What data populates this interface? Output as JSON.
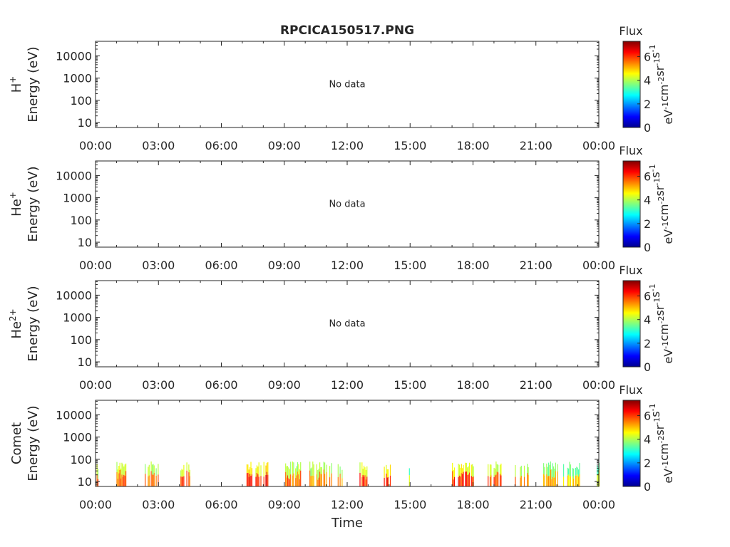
{
  "title": "RPCICA150517.PNG",
  "colorbar_range": [
    0,
    7.3
  ],
  "chart_data": [
    {
      "type": "heatmap",
      "species": "H",
      "species_sup": "+",
      "ylabel": "Energy (eV)",
      "ylim": [
        6,
        45000
      ],
      "yscale": "log",
      "yticks": [
        "10",
        "100",
        "1000",
        "10000"
      ],
      "xticks": [
        "00:00",
        "03:00",
        "06:00",
        "09:00",
        "12:00",
        "15:00",
        "18:00",
        "21:00",
        "00:00"
      ],
      "xlim_hours": [
        0,
        24
      ],
      "annotation": "No data",
      "bursts": [],
      "colorbar": {
        "title": "Flux",
        "ticks": [
          "0",
          "2",
          "4",
          "6"
        ],
        "unit": "eV-1cm-2sr-1s-1"
      }
    },
    {
      "type": "heatmap",
      "species": "He",
      "species_sup": "+",
      "ylabel": "Energy (eV)",
      "ylim": [
        6,
        45000
      ],
      "yscale": "log",
      "yticks": [
        "10",
        "100",
        "1000",
        "10000"
      ],
      "xticks": [
        "00:00",
        "03:00",
        "06:00",
        "09:00",
        "12:00",
        "15:00",
        "18:00",
        "21:00",
        "00:00"
      ],
      "xlim_hours": [
        0,
        24
      ],
      "annotation": "No data",
      "bursts": [],
      "colorbar": {
        "title": "Flux",
        "ticks": [
          "0",
          "2",
          "4",
          "6"
        ],
        "unit": "eV-1cm-2sr-1s-1"
      }
    },
    {
      "type": "heatmap",
      "species": "He",
      "species_sup": "2+",
      "ylabel": "Energy (eV)",
      "ylim": [
        6,
        45000
      ],
      "yscale": "log",
      "yticks": [
        "10",
        "100",
        "1000",
        "10000"
      ],
      "xticks": [
        "00:00",
        "03:00",
        "06:00",
        "09:00",
        "12:00",
        "15:00",
        "18:00",
        "21:00",
        "00:00"
      ],
      "xlim_hours": [
        0,
        24
      ],
      "annotation": "No data",
      "bursts": [],
      "colorbar": {
        "title": "Flux",
        "ticks": [
          "0",
          "2",
          "4",
          "6"
        ],
        "unit": "eV-1cm-2sr-1s-1"
      }
    },
    {
      "type": "heatmap",
      "species": "Comet",
      "species_sup": "",
      "ylabel": "Energy (eV)",
      "xlabel": "Time",
      "ylim": [
        6,
        45000
      ],
      "yscale": "log",
      "yticks": [
        "10",
        "100",
        "1000",
        "10000"
      ],
      "xticks": [
        "00:00",
        "03:00",
        "06:00",
        "09:00",
        "12:00",
        "15:00",
        "18:00",
        "21:00",
        "00:00"
      ],
      "xlim_hours": [
        0,
        24
      ],
      "annotation": "",
      "bursts": [
        {
          "start": 0.05,
          "end": 0.2,
          "emax": 80,
          "intensity": 6.0
        },
        {
          "start": 1.0,
          "end": 1.45,
          "emax": 80,
          "intensity": 6.3
        },
        {
          "start": 2.35,
          "end": 3.0,
          "emax": 80,
          "intensity": 6.0
        },
        {
          "start": 4.05,
          "end": 4.5,
          "emax": 75,
          "intensity": 6.2
        },
        {
          "start": 7.2,
          "end": 8.2,
          "emax": 80,
          "intensity": 6.9
        },
        {
          "start": 9.0,
          "end": 9.8,
          "emax": 80,
          "intensity": 6.0
        },
        {
          "start": 10.2,
          "end": 11.3,
          "emax": 80,
          "intensity": 5.8
        },
        {
          "start": 11.5,
          "end": 11.85,
          "emax": 70,
          "intensity": 5.8
        },
        {
          "start": 12.45,
          "end": 12.95,
          "emax": 80,
          "intensity": 6.5
        },
        {
          "start": 13.75,
          "end": 14.05,
          "emax": 80,
          "intensity": 6.8
        },
        {
          "start": 14.9,
          "end": 14.95,
          "emax": 40,
          "intensity": 5.0
        },
        {
          "start": 17.0,
          "end": 18.0,
          "emax": 80,
          "intensity": 6.6
        },
        {
          "start": 18.7,
          "end": 19.4,
          "emax": 80,
          "intensity": 6.3
        },
        {
          "start": 20.0,
          "end": 20.65,
          "emax": 80,
          "intensity": 6.0
        },
        {
          "start": 21.3,
          "end": 22.1,
          "emax": 80,
          "intensity": 5.5
        },
        {
          "start": 22.3,
          "end": 23.1,
          "emax": 80,
          "intensity": 5.2
        },
        {
          "start": 23.9,
          "end": 24.0,
          "emax": 80,
          "intensity": 5.0
        }
      ],
      "colorbar": {
        "title": "Flux",
        "ticks": [
          "0",
          "2",
          "4",
          "6"
        ],
        "unit": "eV-1cm-2sr-1s-1"
      }
    }
  ]
}
